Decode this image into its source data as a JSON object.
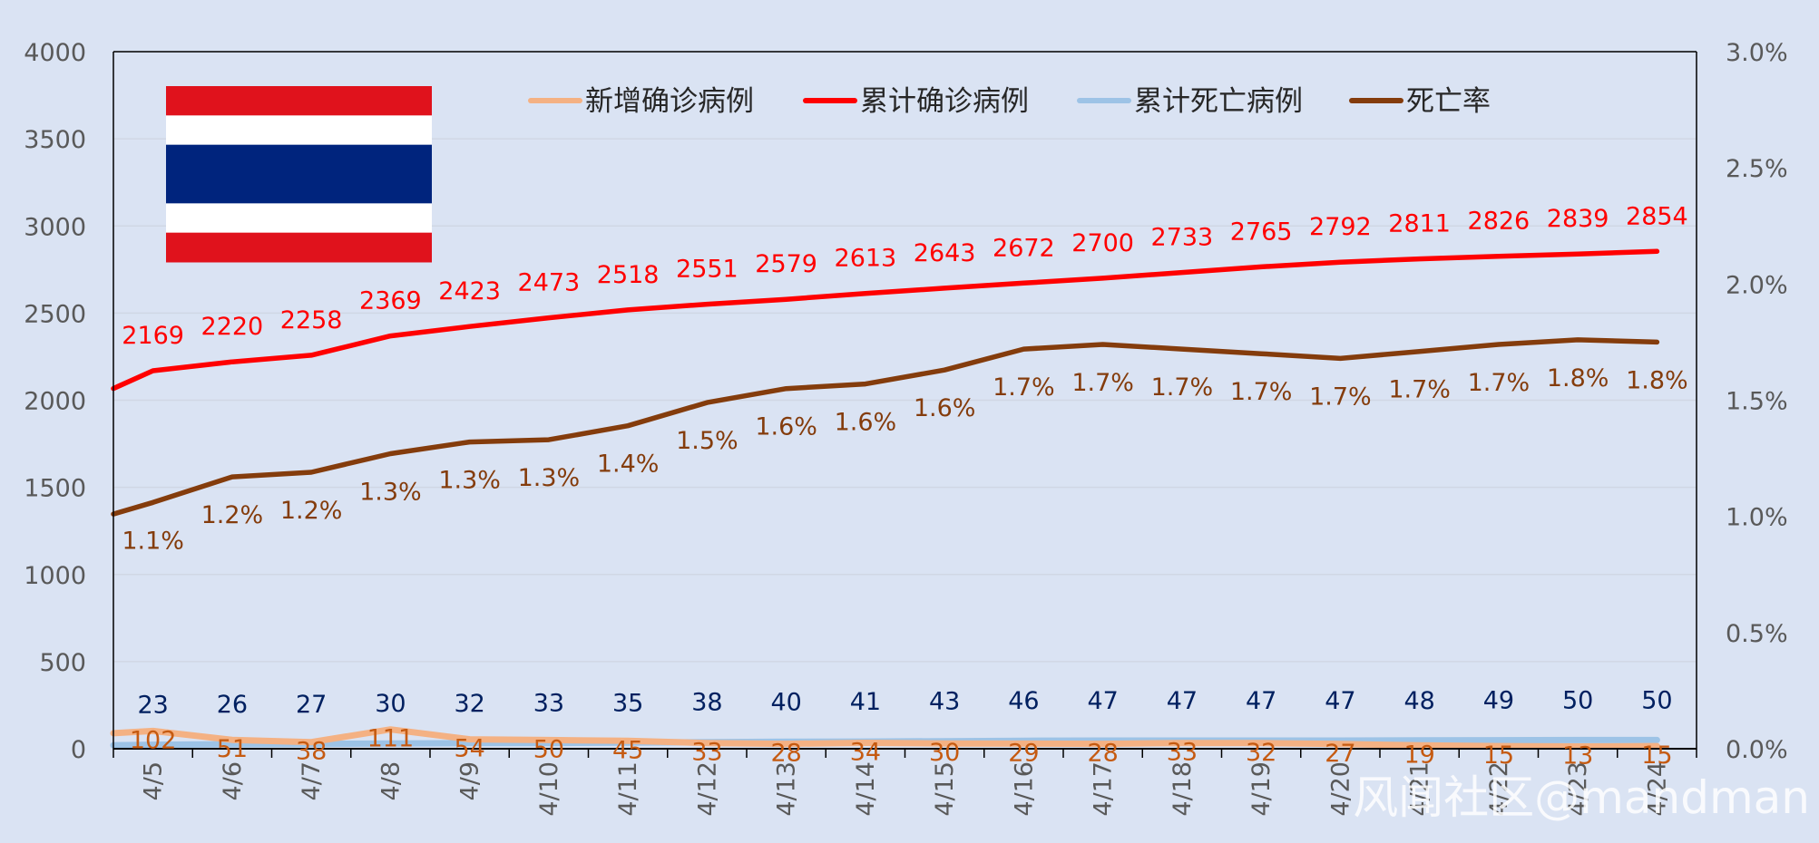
{
  "colors": {
    "background": "#dae3f3",
    "gridline": "#d0d7e4",
    "axis": "#000000",
    "new_cases": "#f4b183",
    "cumulative_cases": "#ff0000",
    "cumulative_deaths": "#9dc3e6",
    "death_rate": "#843c0c",
    "label_new_cases": "#c55a11",
    "label_cumulative_cases": "#ff0000",
    "label_deaths": "#002060",
    "label_death_rate": "#843c0c",
    "flag_red": "#e0121c",
    "flag_white": "#ffffff",
    "flag_blue": "#00247d"
  },
  "watermark": "风闻社区@mandman",
  "flag_icon": "thailand-flag",
  "chart_data": {
    "type": "line",
    "categories": [
      "4/5",
      "4/6",
      "4/7",
      "4/8",
      "4/9",
      "4/10",
      "4/11",
      "4/12",
      "4/13",
      "4/14",
      "4/15",
      "4/16",
      "4/17",
      "4/18",
      "4/19",
      "4/20",
      "4/21",
      "4/22",
      "4/23",
      "4/24"
    ],
    "y_left": {
      "range": [
        0,
        4000
      ],
      "ticks": [
        "0",
        "500",
        "1000",
        "1500",
        "2000",
        "2500",
        "3000",
        "3500",
        "4000"
      ],
      "tick_values": [
        0,
        500,
        1000,
        1500,
        2000,
        2500,
        3000,
        3500,
        4000
      ]
    },
    "y_right": {
      "range": [
        0,
        0.03
      ],
      "ticks": [
        "0.0%",
        "0.5%",
        "1.0%",
        "1.5%",
        "2.0%",
        "2.5%",
        "3.0%"
      ],
      "tick_values": [
        0,
        0.005,
        0.01,
        0.015,
        0.02,
        0.025,
        0.03
      ]
    },
    "grid": true,
    "legend_position": "top",
    "series": [
      {
        "name": "新增确诊病例",
        "axis": "left",
        "start_value": 89,
        "values": [
          102,
          51,
          38,
          111,
          54,
          50,
          45,
          33,
          28,
          34,
          30,
          29,
          28,
          33,
          32,
          27,
          19,
          15,
          13,
          15
        ],
        "labels": [
          "102",
          "51",
          "38",
          "111",
          "54",
          "50",
          "45",
          "33",
          "28",
          "34",
          "30",
          "29",
          "28",
          "33",
          "32",
          "27",
          "19",
          "15",
          "13",
          "15"
        ]
      },
      {
        "name": "累计确诊病例",
        "axis": "left",
        "start_value": 2067,
        "values": [
          2169,
          2220,
          2258,
          2369,
          2423,
          2473,
          2518,
          2551,
          2579,
          2613,
          2643,
          2672,
          2700,
          2733,
          2765,
          2792,
          2811,
          2826,
          2839,
          2854
        ],
        "labels": [
          "2169",
          "2220",
          "2258",
          "2369",
          "2423",
          "2473",
          "2518",
          "2551",
          "2579",
          "2613",
          "2643",
          "2672",
          "2700",
          "2733",
          "2765",
          "2792",
          "2811",
          "2826",
          "2839",
          "2854"
        ]
      },
      {
        "name": "累计死亡病例",
        "axis": "left",
        "start_value": 20,
        "values": [
          23,
          26,
          27,
          30,
          32,
          33,
          35,
          38,
          40,
          41,
          43,
          46,
          47,
          47,
          47,
          47,
          48,
          49,
          50,
          50
        ],
        "labels": [
          "23",
          "26",
          "27",
          "30",
          "32",
          "33",
          "35",
          "38",
          "40",
          "41",
          "43",
          "46",
          "47",
          "47",
          "47",
          "47",
          "48",
          "49",
          "50",
          "50"
        ]
      },
      {
        "name": "死亡率",
        "axis": "right",
        "start_value": 0.0101,
        "values": [
          0.0106,
          0.0117,
          0.0119,
          0.0127,
          0.0132,
          0.0133,
          0.0139,
          0.0149,
          0.0155,
          0.0157,
          0.0163,
          0.0172,
          0.0174,
          0.0172,
          0.017,
          0.0168,
          0.0171,
          0.0174,
          0.0176,
          0.0175
        ],
        "labels": [
          "1.1%",
          "1.2%",
          "1.2%",
          "1.3%",
          "1.3%",
          "1.3%",
          "1.4%",
          "1.5%",
          "1.6%",
          "1.6%",
          "1.6%",
          "1.7%",
          "1.7%",
          "1.7%",
          "1.7%",
          "1.7%",
          "1.7%",
          "1.7%",
          "1.8%",
          "1.8%"
        ]
      }
    ]
  }
}
